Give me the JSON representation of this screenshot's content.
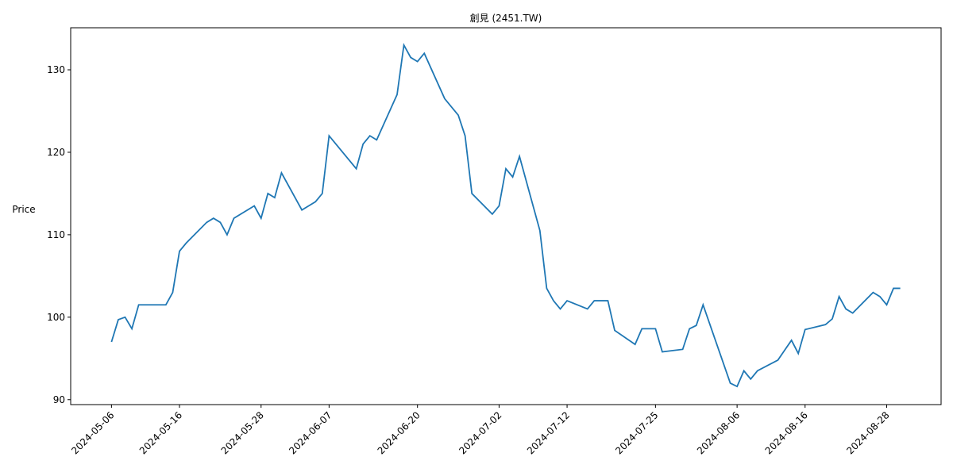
{
  "chart_data": {
    "type": "line",
    "title": "創見 (2451.TW)",
    "y_label": "Price",
    "x": [
      "2024-05-06",
      "2024-05-07",
      "2024-05-08",
      "2024-05-09",
      "2024-05-10",
      "2024-05-13",
      "2024-05-14",
      "2024-05-15",
      "2024-05-16",
      "2024-05-17",
      "2024-05-20",
      "2024-05-21",
      "2024-05-22",
      "2024-05-23",
      "2024-05-24",
      "2024-05-27",
      "2024-05-28",
      "2024-05-29",
      "2024-05-30",
      "2024-05-31",
      "2024-06-03",
      "2024-06-04",
      "2024-06-05",
      "2024-06-06",
      "2024-06-07",
      "2024-06-11",
      "2024-06-12",
      "2024-06-13",
      "2024-06-14",
      "2024-06-17",
      "2024-06-18",
      "2024-06-19",
      "2024-06-20",
      "2024-06-21",
      "2024-06-24",
      "2024-06-25",
      "2024-06-26",
      "2024-06-27",
      "2024-06-28",
      "2024-07-01",
      "2024-07-02",
      "2024-07-03",
      "2024-07-04",
      "2024-07-05",
      "2024-07-08",
      "2024-07-09",
      "2024-07-10",
      "2024-07-11",
      "2024-07-12",
      "2024-07-15",
      "2024-07-16",
      "2024-07-17",
      "2024-07-18",
      "2024-07-19",
      "2024-07-22",
      "2024-07-23",
      "2024-07-24",
      "2024-07-25",
      "2024-07-26",
      "2024-07-29",
      "2024-07-30",
      "2024-07-31",
      "2024-08-01",
      "2024-08-05",
      "2024-08-06",
      "2024-08-07",
      "2024-08-08",
      "2024-08-09",
      "2024-08-12",
      "2024-08-13",
      "2024-08-14",
      "2024-08-15",
      "2024-08-16",
      "2024-08-19",
      "2024-08-20",
      "2024-08-21",
      "2024-08-22",
      "2024-08-23",
      "2024-08-26",
      "2024-08-27",
      "2024-08-28",
      "2024-08-29",
      "2024-08-30"
    ],
    "series": [
      {
        "color": "#1f77b4",
        "values": [
          97.0,
          99.7,
          100.0,
          98.6,
          101.5,
          101.5,
          101.5,
          103.0,
          108.0,
          109.0,
          111.5,
          112.0,
          111.5,
          110.0,
          112.0,
          113.5,
          112.0,
          115.0,
          114.5,
          117.5,
          113.0,
          113.5,
          114.0,
          115.0,
          122.0,
          118.0,
          121.0,
          122.0,
          121.5,
          127.0,
          133.0,
          131.5,
          131.0,
          132.0,
          126.5,
          125.5,
          124.5,
          122.0,
          115.0,
          112.5,
          113.5,
          118.0,
          117.0,
          119.5,
          110.5,
          103.5,
          102.0,
          101.0,
          102.0,
          101.0,
          102.0,
          102.0,
          102.0,
          98.4,
          96.7,
          98.6,
          98.6,
          98.6,
          95.8,
          96.1,
          98.6,
          99.0,
          101.5,
          92.0,
          91.6,
          93.5,
          92.5,
          93.5,
          94.8,
          96.0,
          97.2,
          95.6,
          98.5,
          99.1,
          99.8,
          102.5,
          101.0,
          100.5,
          103.0,
          102.5,
          101.5,
          103.5,
          103.5
        ]
      }
    ],
    "xlim": [
      "2024-04-30",
      "2024-09-05"
    ],
    "xticks": [
      "2024-05-06",
      "2024-05-16",
      "2024-05-28",
      "2024-06-07",
      "2024-06-20",
      "2024-07-02",
      "2024-07-12",
      "2024-07-25",
      "2024-08-06",
      "2024-08-16",
      "2024-08-28"
    ],
    "ylim": [
      89.4,
      135.1
    ],
    "yticks": [
      90,
      100,
      110,
      120,
      130
    ],
    "y_label_color": "#0000ff"
  }
}
